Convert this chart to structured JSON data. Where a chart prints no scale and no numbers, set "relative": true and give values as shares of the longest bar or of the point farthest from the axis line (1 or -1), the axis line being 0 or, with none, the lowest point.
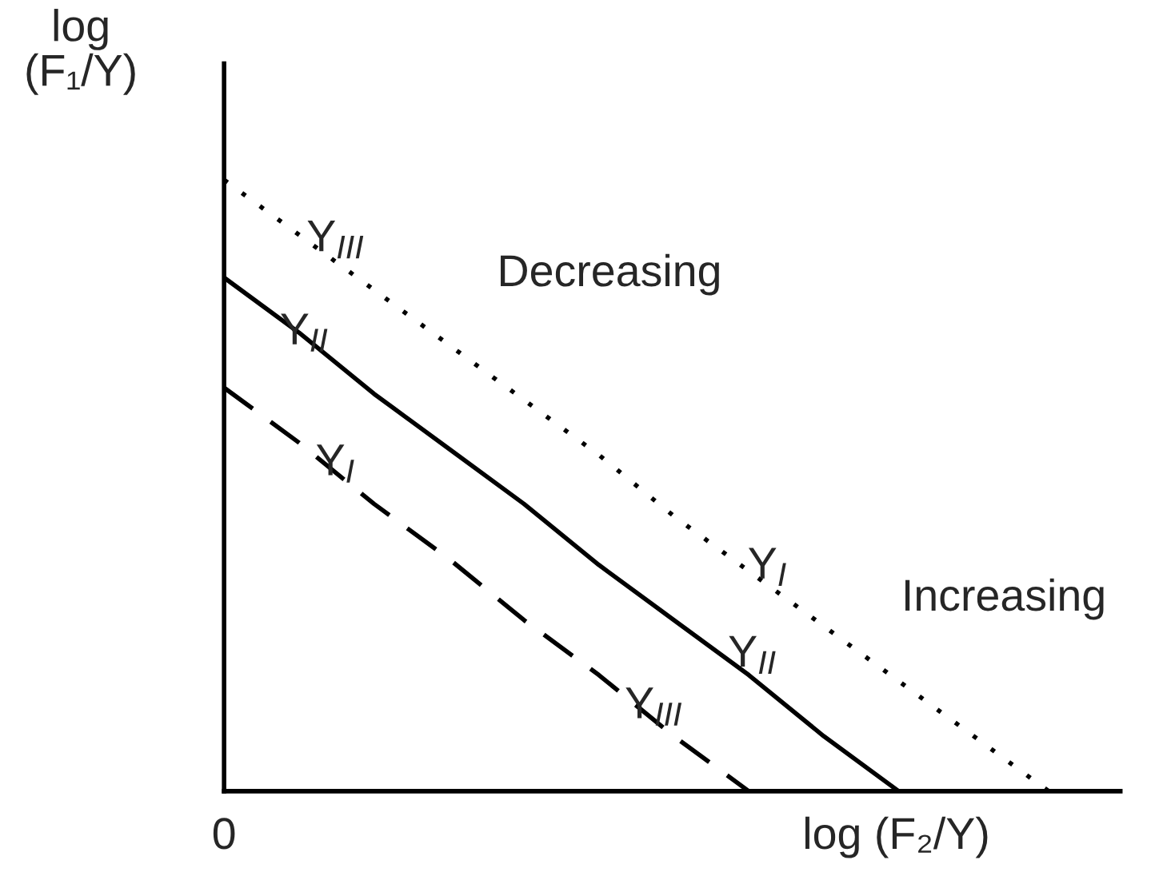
{
  "chart_data": {
    "type": "line",
    "relative": true,
    "xlabel": "log (F₂/Y)",
    "ylabel": "log (F₁/Y)",
    "legend": false,
    "marker": "none",
    "categories": [
      null,
      null,
      null,
      null,
      null,
      null,
      null,
      null,
      null,
      null,
      null,
      null
    ],
    "series": [
      {
        "values": [
          1,
          0.91,
          0.82,
          0.73,
          0.64,
          0.55,
          0.45,
          0.36,
          0.27,
          0.18,
          0.09,
          0
        ],
        "color": "#000000",
        "line_style": "dotted"
      },
      {
        "values": [
          0.84,
          0.75,
          0.65,
          0.56,
          0.47,
          0.37,
          0.28,
          0.19,
          0.09,
          0,
          null,
          null
        ],
        "color": "#000000",
        "line_style": "solid"
      },
      {
        "values": [
          0.66,
          0.57,
          0.47,
          0.38,
          0.28,
          0.19,
          0.09,
          0,
          null,
          null,
          null,
          null
        ],
        "color": "#000000",
        "line_style": "dashed"
      }
    ],
    "annotations": [
      "Y$_{III}$",
      "Y$_{II}$",
      "Y$_{I}$",
      "Y$_{I}$",
      "Y$_{II}$",
      "Y$_{III}$",
      "Decreasing",
      "Increasing",
      "0"
    ]
  }
}
